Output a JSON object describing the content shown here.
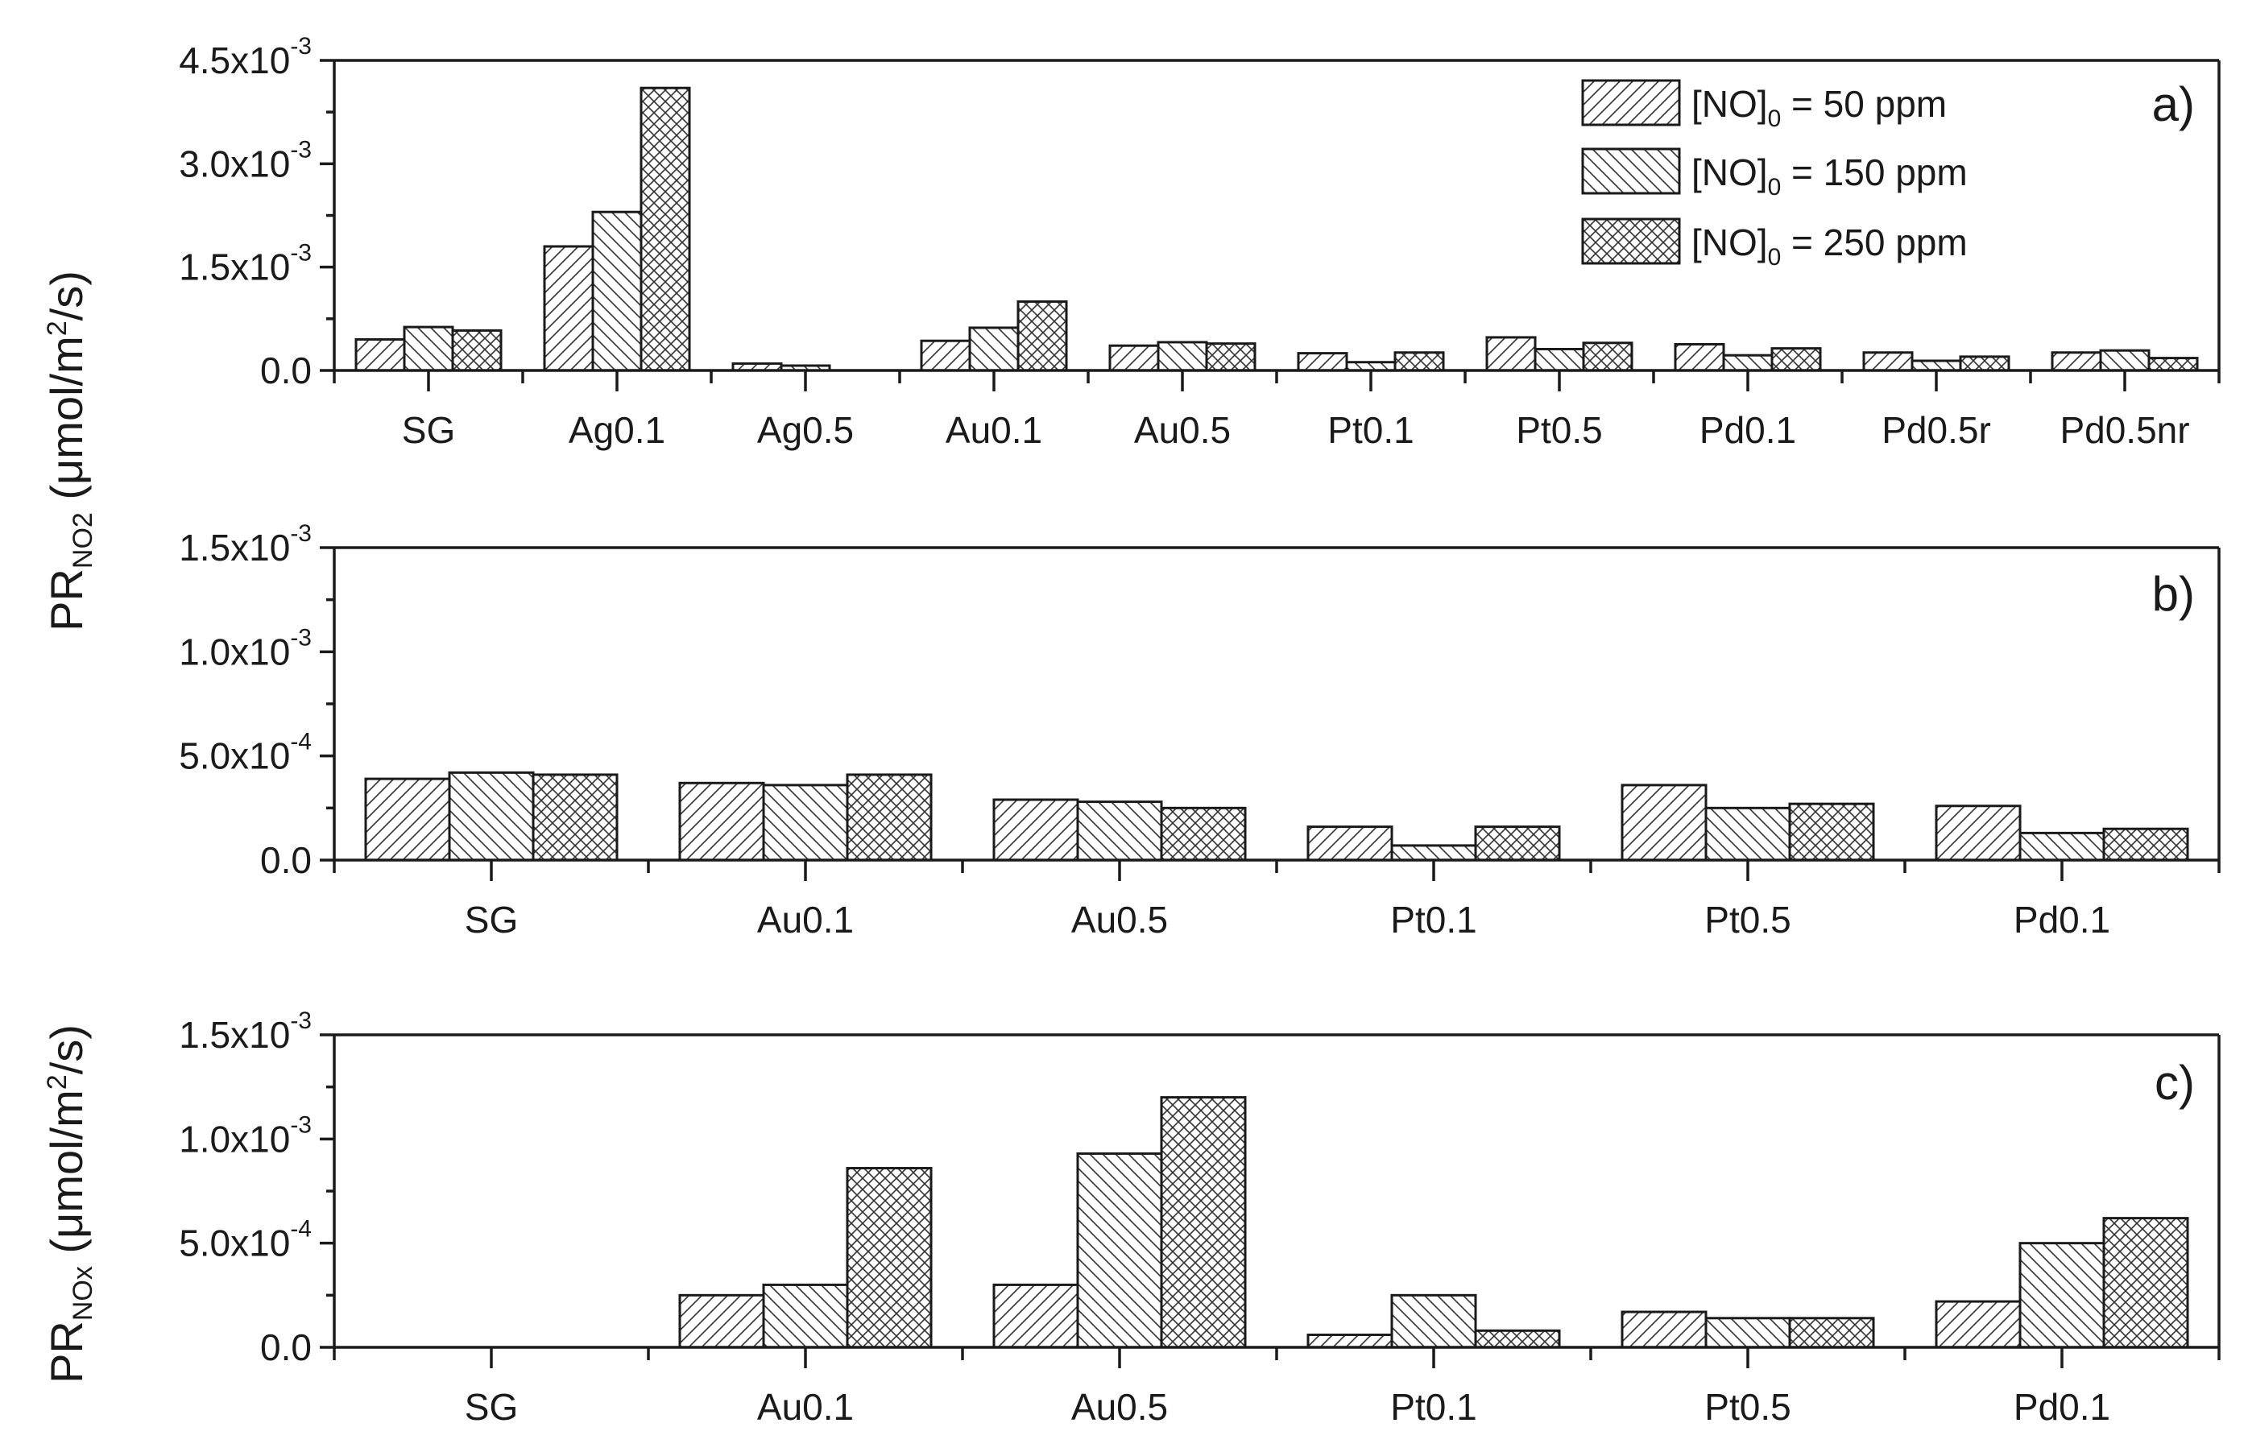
{
  "figure": {
    "ylabel_top": {
      "main": "PR",
      "sub": "NO2",
      "unit_pre": " (μmol/m",
      "unit_sup": "2",
      "unit_post": "/s)"
    },
    "ylabel_bottom": {
      "main": "PR",
      "sub": "NOx",
      "unit_pre": " (μmol/m",
      "unit_sup": "2",
      "unit_post": "/s)"
    }
  },
  "legend": [
    {
      "pre": "[NO]",
      "sub": "0",
      "post": " = 50 ppm",
      "pattern": "hatch-fwd"
    },
    {
      "pre": "[NO]",
      "sub": "0",
      "post": " = 150 ppm",
      "pattern": "hatch-back"
    },
    {
      "pre": "[NO]",
      "sub": "0",
      "post": " = 250 ppm",
      "pattern": "hatch-cross"
    }
  ],
  "chart_data": [
    {
      "panel": "a)",
      "type": "bar",
      "categories": [
        "SG",
        "Ag0.1",
        "Ag0.5",
        "Au0.1",
        "Au0.5",
        "Pt0.1",
        "Pt0.5",
        "Pd0.1",
        "Pd0.5r",
        "Pd0.5nr"
      ],
      "series": [
        {
          "name": "[NO]0 = 50 ppm",
          "values": [
            0.00045,
            0.0018,
            0.0001,
            0.00043,
            0.00036,
            0.00025,
            0.00048,
            0.00038,
            0.00026,
            0.00026
          ]
        },
        {
          "name": "[NO]0 = 150 ppm",
          "values": [
            0.00063,
            0.0023,
            7e-05,
            0.00062,
            0.00041,
            0.00012,
            0.00031,
            0.00022,
            0.00014,
            0.00029
          ]
        },
        {
          "name": "[NO]0 = 250 ppm",
          "values": [
            0.00058,
            0.0041,
            0.0,
            0.001,
            0.00039,
            0.00026,
            0.0004,
            0.00032,
            0.0002,
            0.00018
          ]
        }
      ],
      "ylim": [
        0,
        0.0045
      ],
      "yticks": [
        {
          "value": 0.0,
          "label": "0.0",
          "exp": ""
        },
        {
          "value": 0.0015,
          "label": "1.5x10",
          "exp": "-3"
        },
        {
          "value": 0.003,
          "label": "3.0x10",
          "exp": "-3"
        },
        {
          "value": 0.0045,
          "label": "4.5x10",
          "exp": "-3"
        }
      ]
    },
    {
      "panel": "b)",
      "type": "bar",
      "categories": [
        "SG",
        "Au0.1",
        "Au0.5",
        "Pt0.1",
        "Pt0.5",
        "Pd0.1"
      ],
      "series": [
        {
          "name": "[NO]0 = 50 ppm",
          "values": [
            0.00039,
            0.00037,
            0.00029,
            0.00016,
            0.00036,
            0.00026
          ]
        },
        {
          "name": "[NO]0 = 150 ppm",
          "values": [
            0.00042,
            0.00036,
            0.00028,
            7e-05,
            0.00025,
            0.00013
          ]
        },
        {
          "name": "[NO]0 = 250 ppm",
          "values": [
            0.00041,
            0.00041,
            0.00025,
            0.00016,
            0.00027,
            0.00015
          ]
        }
      ],
      "ylim": [
        0,
        0.0015
      ],
      "yticks": [
        {
          "value": 0.0,
          "label": "0.0",
          "exp": ""
        },
        {
          "value": 0.0005,
          "label": "5.0x10",
          "exp": "-4"
        },
        {
          "value": 0.001,
          "label": "1.0x10",
          "exp": "-3"
        },
        {
          "value": 0.0015,
          "label": "1.5x10",
          "exp": "-3"
        }
      ]
    },
    {
      "panel": "c)",
      "type": "bar",
      "categories": [
        "SG",
        "Au0.1",
        "Au0.5",
        "Pt0.1",
        "Pt0.5",
        "Pd0.1"
      ],
      "series": [
        {
          "name": "[NO]0 = 50 ppm",
          "values": [
            0.0,
            0.00025,
            0.0003,
            6e-05,
            0.00017,
            0.00022
          ]
        },
        {
          "name": "[NO]0 = 150 ppm",
          "values": [
            0.0,
            0.0003,
            0.00093,
            0.00025,
            0.00014,
            0.0005
          ]
        },
        {
          "name": "[NO]0 = 250 ppm",
          "values": [
            0.0,
            0.00086,
            0.0012,
            8e-05,
            0.00014,
            0.00062
          ]
        }
      ],
      "ylim": [
        0,
        0.0015
      ],
      "yticks": [
        {
          "value": 0.0,
          "label": "0.0",
          "exp": ""
        },
        {
          "value": 0.0005,
          "label": "5.0x10",
          "exp": "-4"
        },
        {
          "value": 0.001,
          "label": "1.0x10",
          "exp": "-3"
        },
        {
          "value": 0.0015,
          "label": "1.5x10",
          "exp": "-3"
        }
      ]
    }
  ]
}
